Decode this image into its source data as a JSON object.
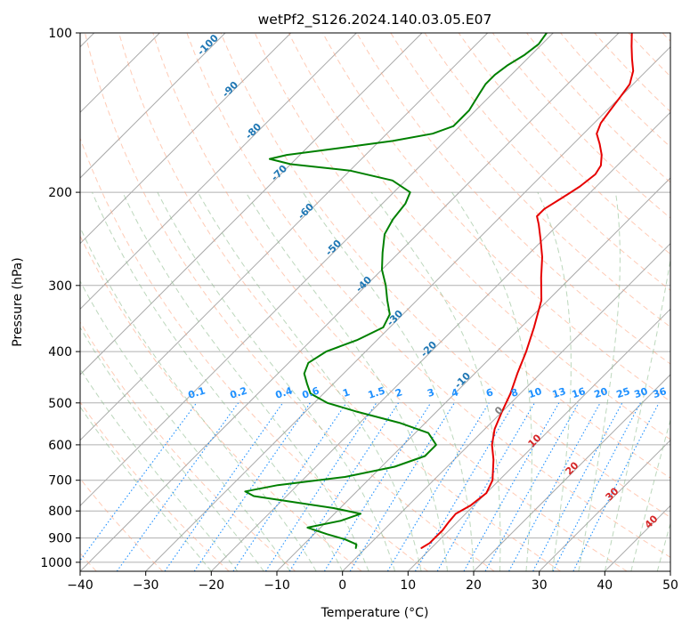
{
  "chart_data": {
    "type": "line",
    "title": "wetPf2_S126.2024.140.03.05.E07",
    "xlabel": "Temperature (°C)",
    "ylabel": "Pressure (hPa)",
    "xlim": [
      -40,
      50
    ],
    "ylim": [
      1040,
      100
    ],
    "y_scale": "log",
    "x_ticks": [
      -40,
      -30,
      -20,
      -10,
      0,
      10,
      20,
      30,
      40,
      50
    ],
    "y_ticks": [
      100,
      200,
      300,
      400,
      500,
      600,
      700,
      800,
      900,
      1000
    ],
    "grid": true,
    "skew": true,
    "colors": {
      "temperature": "#e60000",
      "dewpoint": "#008000",
      "isotherm": "#a9a9a9",
      "dry_adiabat": "#ffa07a",
      "moist_adiabat": "#8fbc8f",
      "mixing_ratio": "#1e90ff",
      "dry_label": "#1f77b4",
      "wet_label": "#d62728",
      "zero_label": "#808080"
    },
    "dry_adiabat_labels": [
      "-100",
      "-90",
      "-80",
      "-70",
      "-60",
      "-50",
      "-40",
      "-30",
      "-20",
      "-10"
    ],
    "mixing_ratio_labels": [
      "0.1",
      "0.2",
      "0.4",
      "0.6",
      "1",
      "1.5",
      "2",
      "3",
      "4",
      "6",
      "8",
      "10",
      "13",
      "16",
      "20",
      "25",
      "30",
      "36"
    ],
    "moist_adiabat_labels": [
      "0",
      "10",
      "20",
      "30",
      "40"
    ],
    "series": [
      {
        "id": "temperature",
        "p": [
          940,
          920,
          900,
          870,
          840,
          810,
          780,
          740,
          700,
          640,
          600,
          560,
          520,
          480,
          440,
          400,
          360,
          320,
          290,
          265,
          245,
          230,
          222,
          215,
          205,
          195,
          185,
          178,
          170,
          162,
          155,
          148,
          140,
          132,
          125,
          118,
          112,
          106,
          100
        ],
        "t": [
          8.5,
          9.0,
          9.0,
          9.0,
          8.7,
          8.5,
          9.5,
          10.0,
          9.0,
          6.0,
          3.5,
          1.5,
          0.0,
          -1.5,
          -3.5,
          -5.5,
          -8.0,
          -11.0,
          -14.5,
          -17.5,
          -20.5,
          -23.0,
          -24.5,
          -24.5,
          -23.5,
          -22.5,
          -22.0,
          -22.5,
          -24.0,
          -26.0,
          -28.0,
          -29.0,
          -29.5,
          -30.0,
          -30.5,
          -32.0,
          -34.0,
          -36.0,
          -38.0
        ]
      },
      {
        "id": "dewpoint",
        "p": [
          940,
          925,
          905,
          885,
          860,
          835,
          810,
          790,
          770,
          750,
          735,
          715,
          690,
          660,
          630,
          600,
          570,
          545,
          520,
          500,
          480,
          460,
          440,
          420,
          400,
          380,
          360,
          340,
          320,
          300,
          280,
          260,
          240,
          225,
          210,
          200,
          190,
          182,
          177,
          173,
          170,
          165,
          160,
          155,
          150,
          145,
          140,
          135,
          130,
          125,
          120,
          115,
          110,
          105,
          100
        ],
        "t": [
          -1.5,
          -2.0,
          -4.5,
          -8.0,
          -12.0,
          -8.0,
          -6.0,
          -11.0,
          -18.0,
          -25.0,
          -27.0,
          -23.0,
          -14.0,
          -8.0,
          -5.0,
          -5.0,
          -8.0,
          -14.0,
          -22.0,
          -28.0,
          -32.0,
          -34.0,
          -36.0,
          -37.0,
          -36.0,
          -33.0,
          -31.0,
          -32.0,
          -34.5,
          -37.0,
          -40.0,
          -42.5,
          -45.0,
          -46.0,
          -46.5,
          -47.5,
          -52.0,
          -60.0,
          -70.0,
          -74.0,
          -72.0,
          -65.0,
          -58.0,
          -53.0,
          -51.0,
          -51.0,
          -51.0,
          -51.5,
          -52.0,
          -52.5,
          -52.5,
          -52.0,
          -51.0,
          -50.5,
          -51.0
        ]
      }
    ]
  }
}
